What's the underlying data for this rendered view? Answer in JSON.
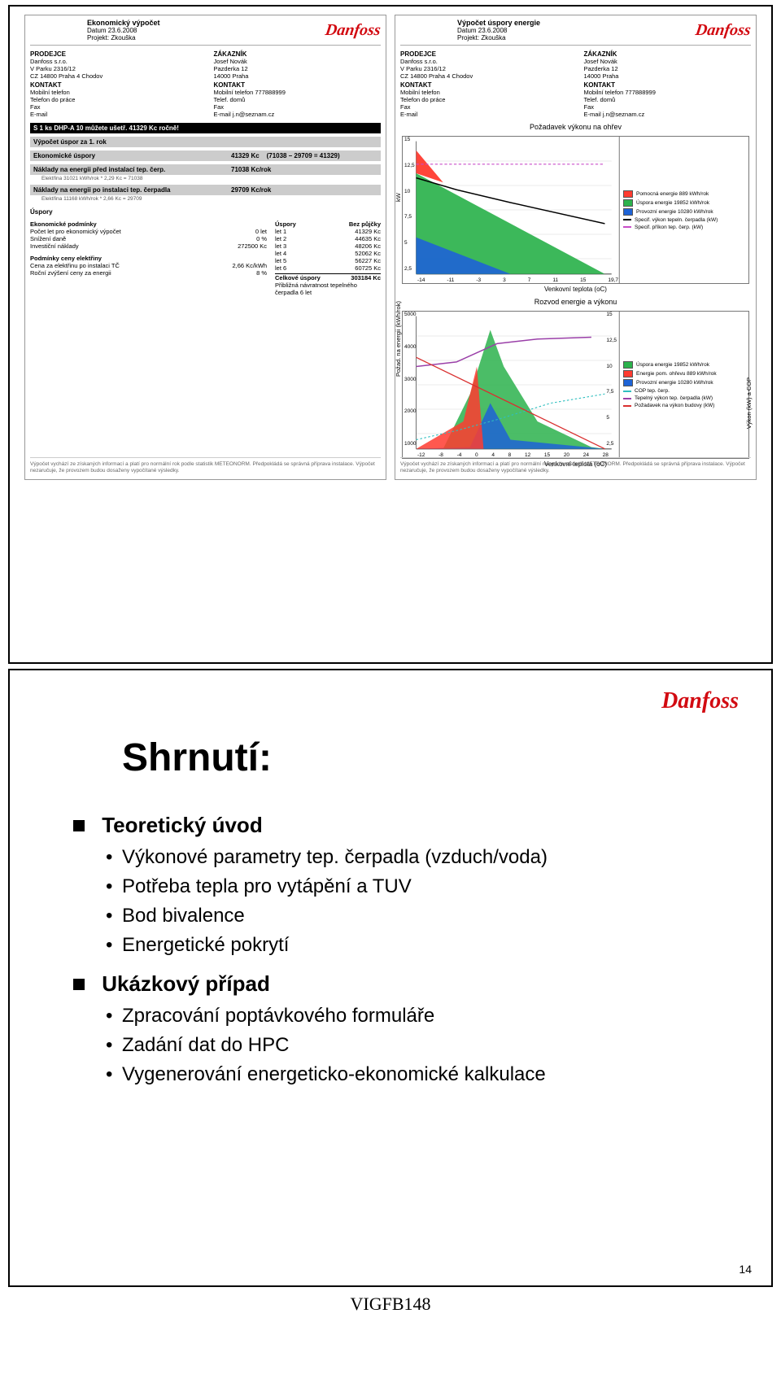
{
  "brand": "Danfoss",
  "brand_color": "#d20a11",
  "report_left": {
    "title": "Ekonomický výpočet",
    "date": "Datum 23.6.2008",
    "project": "Projekt: Zkouška",
    "seller_h": "PRODEJCE",
    "customer_h": "ZÁKAZNÍK",
    "seller": {
      "name": "Danfoss s.r.o.",
      "addr1": "V Parku 2316/12",
      "addr2": "CZ 14800 Praha 4 Chodov",
      "contact_h": "KONTAKT",
      "c1": "Mobilní telefon",
      "c2": "Telefon do práce",
      "c3": "Fax",
      "c4": "E-mail"
    },
    "customer": {
      "name": "Josef Novák",
      "addr1": "Pazderka 12",
      "addr2": "14000 Praha",
      "contact_h": "KONTAKT",
      "c1": "Mobilní telefon   777888999",
      "c2": "Telef. domů",
      "c3": "Fax",
      "c4": "E-mail            j.n@seznam.cz"
    },
    "blackbar": "S 1 ks DHP-A 10 můžete ušetř. 41329 Kc ročně!",
    "sec1_h": "Výpočet úspor za 1. rok",
    "row1_l": "Ekonomické úspory",
    "row1_v": "41329 Kc",
    "row1_n": "(71038 – 29709 = 41329)",
    "row2_l": "Náklady na energii před instalací tep. čerp.",
    "row2_v": "71038 Kc/rok",
    "row2_note": "Elektřina 31021 kWh/rok * 2,29 Kc = 71038",
    "row3_l": "Náklady na energii po instalaci tep. čerpadla",
    "row3_v": "29709 Kc/rok",
    "row3_note": "Elektřina 11168 kWh/rok * 2,66 Kc = 29709",
    "uspory_h": "Úspory",
    "econ_h": "Ekonomické podmínky",
    "econ_rows": [
      [
        "Počet let pro ekonomický výpočet",
        "0 let"
      ],
      [
        "Snížení daně",
        "0 %"
      ],
      [
        "Investiční náklady",
        "272500 Kc"
      ]
    ],
    "elec_h": "Podmínky ceny elektřiny",
    "elec_rows": [
      [
        "Cena za elektřinu po instalaci TČ",
        "2,66 Kc/kWh"
      ],
      [
        "Roční zvýšení ceny za energii",
        "8 %"
      ]
    ],
    "savings_h1": "Úspory",
    "savings_h2": "Bez půjčky",
    "savings_rows": [
      [
        "let 1",
        "41329",
        "Kc"
      ],
      [
        "let 2",
        "44635",
        "Kc"
      ],
      [
        "let 3",
        "48206",
        "Kc"
      ],
      [
        "let 4",
        "52062",
        "Kc"
      ],
      [
        "let 5",
        "56227",
        "Kc"
      ],
      [
        "let 6",
        "60725",
        "Kc"
      ]
    ],
    "total_l": "Celkové úspory",
    "total_v": "303184   Kc",
    "payback": "Přibližná návratnost tepelného čerpadla 6 let",
    "footer": "Výpočet vychází ze získaných informací a platí pro normální rok podle statistik METEONORM. Předpokládá se správná příprava instalace. Výpočet nezaručuje, že provozem budou dosaženy vypočítané výsledky."
  },
  "report_right": {
    "title": "Výpočet úspory energie",
    "date": "Datum 23.6.2008",
    "project": "Projekt: Zkouška",
    "seller_h": "PRODEJCE",
    "customer_h": "ZÁKAZNÍK",
    "chart1_title": "Požadavek výkonu na ohřev",
    "chart1_xaxis": "Venkovní teplota (oC)",
    "chart1_yaxis": "kW",
    "chart1_yticks": [
      "2,5",
      "5",
      "7,5",
      "10",
      "12,5",
      "15"
    ],
    "chart1_xticks": [
      "-14",
      "-11",
      "-3",
      "3",
      "7",
      "11",
      "15",
      "19,7"
    ],
    "chart1_data": {
      "type": "area",
      "green_poly": "20,150 20,40 300,150",
      "red_poly": "20,40 20,15 60,50 20,40",
      "blue_poly": "20,150 20,110 160,150",
      "black_line": "20,45 80,58 160,72 300,95",
      "magenta_dash": "20,30 300,30"
    },
    "chart1_legend": [
      {
        "color": "#ff3b30",
        "label": "Pomocná energie 889 kWh/rok"
      },
      {
        "color": "#2bb24c",
        "label": "Úspora energie 19852 kWh/rok"
      },
      {
        "color": "#1e63d6",
        "label": "Provozní energie 10280 kWh/rok"
      },
      {
        "color": "#000000",
        "label": "Specif. výkon tepeln. čerpadla (kW)",
        "line": true
      },
      {
        "color": "#c84dc8",
        "label": "Specif. příkon tep. čerp. (kW)",
        "line": true
      }
    ],
    "chart2_title": "Rozvod energie a výkonu",
    "chart2_xaxis": "Venkovní teplota (oC)",
    "chart2_y1": "Požad. na energii (kWh/rok)",
    "chart2_y2": "Výkon (kW) a COP",
    "chart2_yticks": [
      "1000",
      "2000",
      "3000",
      "4000",
      "5000"
    ],
    "chart2_y2ticks": [
      "2,5",
      "5",
      "7,5",
      "10",
      "12,5",
      "15"
    ],
    "chart2_xticks": [
      "-12",
      "-8",
      "-4",
      "0",
      "4",
      "8",
      "12",
      "15",
      "20",
      "24",
      "28"
    ],
    "chart2_data": {
      "type": "mixed",
      "green_poly": "20,150 60,150 100,90 130,20 150,60 200,120 280,148 300,150",
      "blue_poly": "20,150 100,148 130,100 160,140 300,150",
      "red_poly": "20,150 90,120 110,60 120,150",
      "purple_line": "20,60 80,55 140,35 200,30 280,28",
      "red_line": "20,50 300,150",
      "teal_dash": "20,140 80,130 140,118 220,100 300,90"
    },
    "chart2_legend": [
      {
        "color": "#2bb24c",
        "label": "Úspora energie 19852 kWh/rok"
      },
      {
        "color": "#ff3b30",
        "label": "Energie pom. ohřevu 889 kWh/rok"
      },
      {
        "color": "#1e63d6",
        "label": "Provozní energie 10280 kWh/rok"
      },
      {
        "color": "#2fbfbf",
        "label": "COP tep. čerp.",
        "line": true
      },
      {
        "color": "#9a3fa8",
        "label": "Tepelný výkon tep. čerpadla (kW)",
        "line": true
      },
      {
        "color": "#d93030",
        "label": "Požadavek na výkon budovy (kW)",
        "line": true
      }
    ],
    "footer": "Výpočet vychází ze získaných informací a platí pro normální rok podle statistik METEONORM. Předpokládá se správná příprava instalace. Výpočet nezaručuje, že provozem budou dosaženy vypočítané výsledky."
  },
  "slide2": {
    "heading": "Shrnutí:",
    "b1": "Teoretický úvod",
    "b1_subs": [
      "Výkonové parametry tep. čerpadla (vzduch/voda)",
      "Potřeba tepla pro vytápění a TUV",
      "Bod bivalence",
      "Energetické pokrytí"
    ],
    "b2": "Ukázkový případ",
    "b2_subs": [
      "Zpracování poptávkového formuláře",
      "Zadání dat do HPC",
      "Vygenerování energeticko-ekonomické kalkulace"
    ],
    "pagenum": "14"
  },
  "footer_code": "VIGFB148",
  "colors": {
    "grey_bar": "#cccccc",
    "grid": "#d7d7d7",
    "border": "#777777"
  }
}
